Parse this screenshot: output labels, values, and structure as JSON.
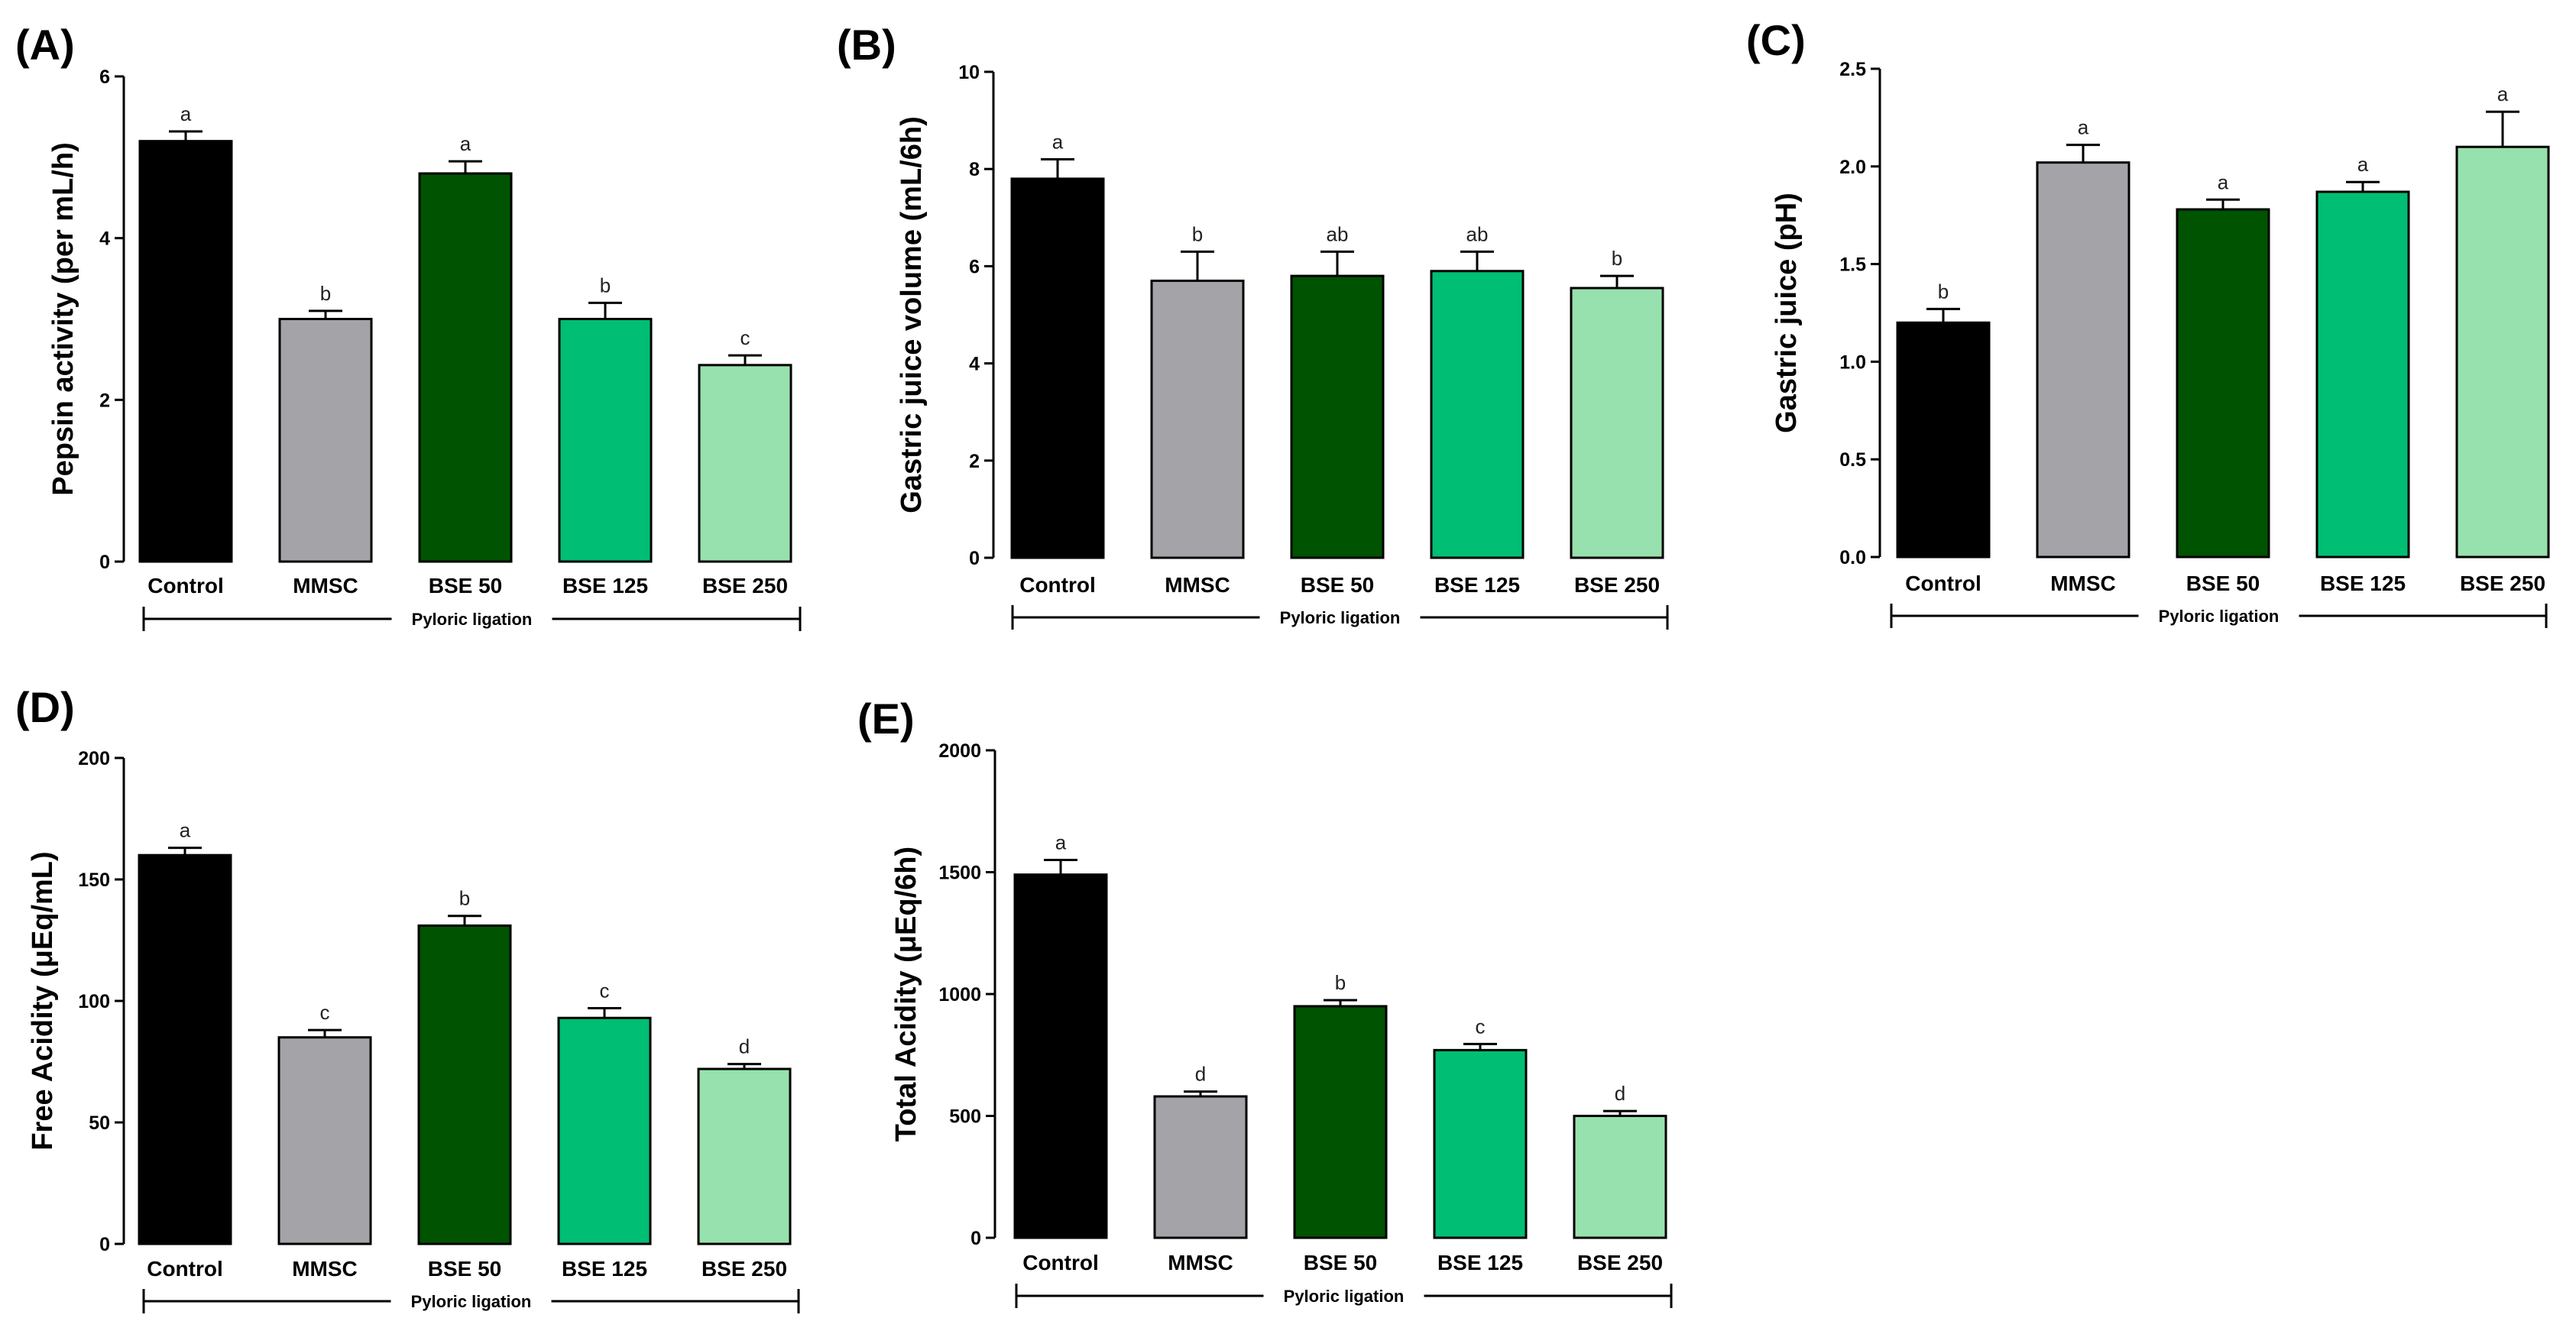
{
  "colors": {
    "Control": "#000000",
    "MMSC": "#a4a3a8",
    "BSE 50": "#005300",
    "BSE 125": "#00be74",
    "BSE 250": "#96e1ad"
  },
  "chart_data": [
    {
      "panel": "(A)",
      "type": "bar",
      "categories": [
        "Control",
        "MMSC",
        "BSE 50",
        "BSE 125",
        "BSE 250"
      ],
      "values": [
        5.2,
        3.0,
        4.8,
        3.0,
        2.43
      ],
      "errors": [
        0.12,
        0.1,
        0.15,
        0.2,
        0.12
      ],
      "letters": [
        "a",
        "b",
        "a",
        "b",
        "c"
      ],
      "ylabel": "Pepsin activity (per mL/h)",
      "ylim": [
        0,
        6
      ],
      "yticks": [
        "0",
        "2",
        "4",
        "6"
      ],
      "group_label": "Pyloric ligation"
    },
    {
      "panel": "(B)",
      "type": "bar",
      "categories": [
        "Control",
        "MMSC",
        "BSE 50",
        "BSE 125",
        "BSE 250"
      ],
      "values": [
        7.8,
        5.7,
        5.8,
        5.9,
        5.55
      ],
      "errors": [
        0.4,
        0.6,
        0.5,
        0.4,
        0.25
      ],
      "letters": [
        "a",
        "b",
        "ab",
        "ab",
        "b"
      ],
      "ylabel": "Gastric juice volume (mL/6h)",
      "ylim": [
        0,
        10
      ],
      "yticks": [
        "0",
        "2",
        "4",
        "6",
        "8",
        "10"
      ],
      "group_label": "Pyloric ligation"
    },
    {
      "panel": "(C)",
      "type": "bar",
      "categories": [
        "Control",
        "MMSC",
        "BSE 50",
        "BSE 125",
        "BSE 250"
      ],
      "values": [
        1.2,
        2.02,
        1.78,
        1.87,
        2.1
      ],
      "errors": [
        0.07,
        0.09,
        0.05,
        0.05,
        0.18
      ],
      "letters": [
        "b",
        "a",
        "a",
        "a",
        "a"
      ],
      "ylabel": "Gastric juice (pH)",
      "ylim": [
        0,
        2.5
      ],
      "yticks": [
        "0.0",
        "0.5",
        "1.0",
        "1.5",
        "2.0",
        "2.5"
      ],
      "group_label": "Pyloric ligation"
    },
    {
      "panel": "(D)",
      "type": "bar",
      "categories": [
        "Control",
        "MMSC",
        "BSE 50",
        "BSE 125",
        "BSE 250"
      ],
      "values": [
        160,
        85,
        131,
        93,
        72
      ],
      "errors": [
        3,
        3,
        4,
        4,
        2
      ],
      "letters": [
        "a",
        "c",
        "b",
        "c",
        "d"
      ],
      "ylabel": "Free Acidity (μEq/mL)",
      "ylim": [
        0,
        200
      ],
      "yticks": [
        "0",
        "50",
        "100",
        "150",
        "200"
      ],
      "group_label": "Pyloric ligation"
    },
    {
      "panel": "(E)",
      "type": "bar",
      "categories": [
        "Control",
        "MMSC",
        "BSE 50",
        "BSE 125",
        "BSE 250"
      ],
      "values": [
        1490,
        580,
        950,
        770,
        500
      ],
      "errors": [
        60,
        20,
        25,
        25,
        20
      ],
      "letters": [
        "a",
        "d",
        "b",
        "c",
        "d"
      ],
      "ylabel": "Total Acidity (μEq/6h)",
      "ylim": [
        0,
        2000
      ],
      "yticks": [
        "0",
        "500",
        "1000",
        "1500",
        "2000"
      ],
      "group_label": "Pyloric ligation"
    }
  ]
}
